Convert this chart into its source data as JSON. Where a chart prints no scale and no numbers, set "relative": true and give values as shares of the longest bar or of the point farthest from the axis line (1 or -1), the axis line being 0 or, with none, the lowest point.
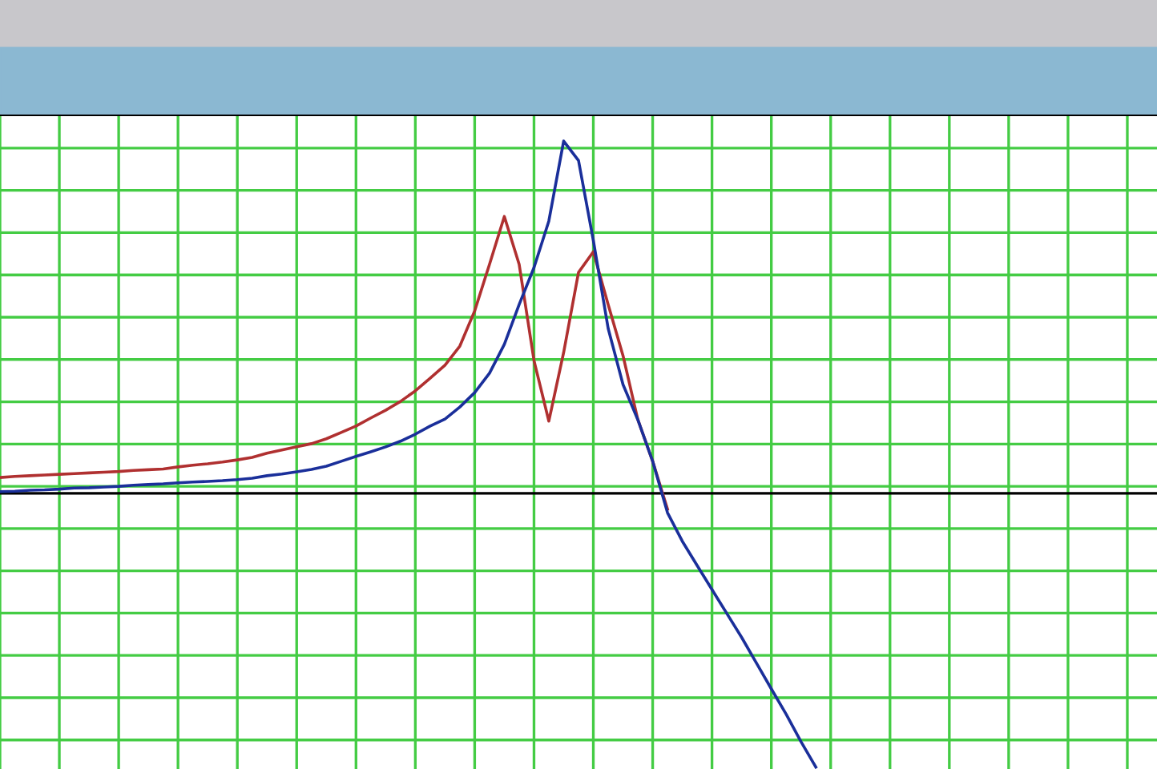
{
  "chart_data": {
    "type": "line",
    "relative": true,
    "grid": true,
    "categories": [
      null,
      null,
      null,
      null,
      null,
      null,
      null,
      null,
      null,
      null,
      null,
      null,
      null,
      null,
      null,
      null,
      null,
      null,
      null,
      null,
      null,
      null,
      null,
      null,
      null,
      null,
      null,
      null,
      null,
      null,
      null,
      null,
      null,
      null,
      null,
      null,
      null,
      null,
      null,
      null,
      null,
      null,
      null,
      null,
      null,
      null,
      null,
      null,
      null,
      null,
      null,
      null,
      null,
      null,
      null,
      null,
      null,
      null,
      null,
      null,
      null,
      null,
      null,
      null,
      null,
      null,
      null,
      null,
      null,
      null,
      null,
      null,
      null,
      null,
      null,
      null,
      null,
      null,
      null
    ],
    "series": [
      {
        "color": "#b03030",
        "values": [
          0.045,
          0.048,
          0.05,
          0.052,
          0.054,
          0.056,
          0.058,
          0.06,
          0.062,
          0.065,
          0.067,
          0.069,
          0.075,
          0.08,
          0.084,
          0.089,
          0.095,
          0.102,
          0.114,
          0.123,
          0.132,
          0.141,
          0.155,
          0.173,
          0.191,
          0.214,
          0.236,
          0.261,
          0.291,
          0.327,
          0.364,
          0.418,
          0.518,
          0.65,
          0.786,
          0.65,
          0.377,
          0.205,
          0.4,
          0.627,
          0.686,
          0.536,
          0.391,
          0.209,
          0.091,
          -0.045,
          null,
          null,
          null,
          null,
          null,
          null,
          null,
          null,
          null,
          null,
          null,
          null,
          null,
          null,
          null,
          null,
          null,
          null,
          null,
          null,
          null,
          null,
          null,
          null,
          null,
          null,
          null,
          null,
          null,
          null,
          null,
          null,
          null
        ]
      },
      {
        "color": "#1a2f9a",
        "values": [
          0.005,
          0.006,
          0.009,
          0.01,
          0.012,
          0.015,
          0.016,
          0.018,
          0.02,
          0.023,
          0.025,
          0.027,
          0.03,
          0.032,
          0.034,
          0.036,
          0.039,
          0.043,
          0.05,
          0.055,
          0.061,
          0.068,
          0.077,
          0.091,
          0.105,
          0.118,
          0.132,
          0.148,
          0.168,
          0.191,
          0.211,
          0.245,
          0.286,
          0.341,
          0.423,
          0.536,
          0.641,
          0.773,
          1.0,
          0.945,
          0.718,
          0.468,
          0.309,
          0.209,
          0.091,
          -0.055,
          -0.136,
          -0.205,
          -0.273,
          -0.341,
          -0.409,
          -0.482,
          -0.555,
          -0.627,
          -0.705,
          -0.777,
          null,
          null,
          null,
          null,
          null,
          null,
          null,
          null,
          null,
          null,
          null,
          null,
          null,
          null,
          null,
          null,
          null,
          null,
          null,
          null,
          null,
          null,
          null
        ]
      }
    ]
  }
}
